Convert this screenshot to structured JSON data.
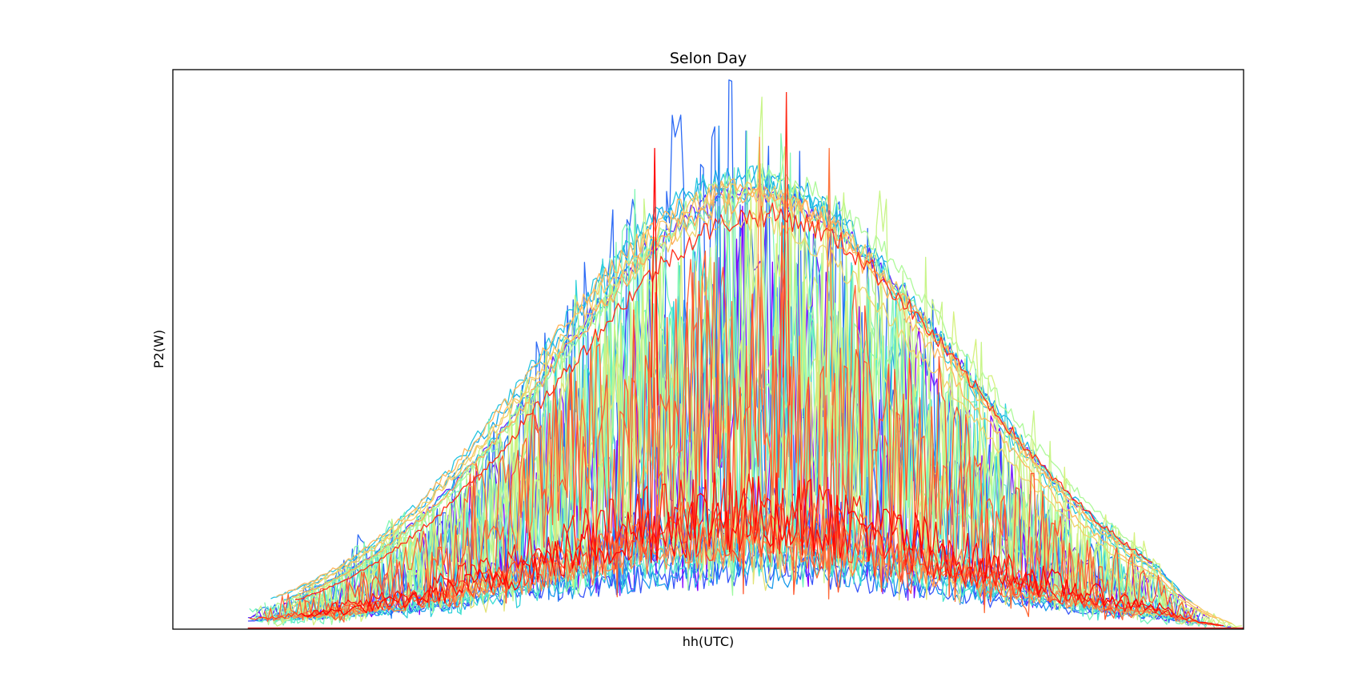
{
  "chart_data": {
    "type": "line",
    "title": "Selon Day",
    "xlabel": "hh(UTC)",
    "ylabel": "P2(W)",
    "x_ticks": [],
    "y_ticks": [],
    "x_domain": [
      0,
      1
    ],
    "y_domain": [
      0,
      1
    ],
    "grid": false,
    "legend": "none",
    "series_count": 40,
    "colormap": "rainbow",
    "palette": [
      "#8000ff",
      "#4a3aff",
      "#1f7ff0",
      "#14b2e6",
      "#3fe0d4",
      "#6ff5bf",
      "#a3fa9f",
      "#d3f481",
      "#ffc060",
      "#ff8a46",
      "#ff4d28",
      "#ff0000"
    ],
    "peak_envelope": {
      "note_free": true,
      "x": [
        0.07,
        0.15,
        0.22,
        0.3,
        0.38,
        0.46,
        0.5,
        0.54,
        0.62,
        0.7,
        0.78,
        0.86,
        0.92,
        0.96,
        1.0
      ],
      "y_smooth_max": [
        0.0,
        0.03,
        0.12,
        0.42,
        0.68,
        0.78,
        0.8,
        0.78,
        0.74,
        0.65,
        0.52,
        0.3,
        0.12,
        0.04,
        0.01
      ],
      "y_spike_max": [
        0.0,
        0.05,
        0.3,
        0.63,
        0.88,
        0.95,
        0.98,
        0.93,
        0.9,
        0.8,
        0.58,
        0.35,
        0.16,
        0.06,
        0.01
      ]
    }
  }
}
